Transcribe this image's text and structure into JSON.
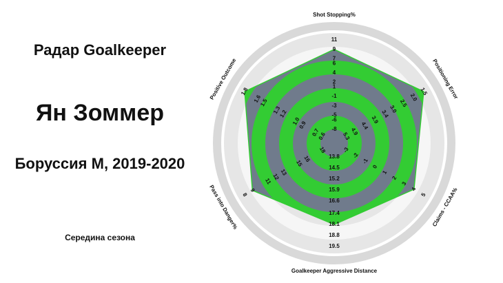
{
  "left_panel": {
    "title": "Радар Goalkeeper",
    "player": "Ян Зоммер",
    "team": "Боруссия М, 2019-2020",
    "period": "Середина сезона"
  },
  "colors": {
    "fill": "#33cc33",
    "ring_dark": "#707b8c",
    "ring_light": "#33cc33",
    "outer_ring": "#d9d9d9"
  },
  "chart_data": {
    "type": "radar",
    "title": "",
    "axes": [
      {
        "label": "Shot Stopping%",
        "ticks": [
          "-8",
          "-6",
          "-5",
          "-3",
          "-1",
          "1",
          "2",
          "4",
          "6",
          "7",
          "9",
          "11"
        ],
        "value": 9,
        "range": [
          -8,
          11
        ]
      },
      {
        "label": "Positioning Error",
        "ticks": [
          "5.3",
          "4.9",
          "4.4",
          "3.9",
          "3.4",
          "3.0",
          "2.5",
          "2.0",
          "1.5"
        ],
        "value": 1.5,
        "range": [
          5.3,
          1.5
        ]
      },
      {
        "label": "Claims - CCAA%",
        "ticks": [
          "-3",
          "-2",
          "-1",
          "0",
          "1",
          "2",
          "3",
          "4",
          "5"
        ],
        "value": 4,
        "range": [
          -3,
          5
        ]
      },
      {
        "label": "Goalkeeper Aggressive Distance",
        "ticks": [
          "13.8",
          "14.5",
          "15.2",
          "15.9",
          "16.6",
          "17.4",
          "18.1",
          "18.8",
          "19.5"
        ],
        "value": 18.1,
        "range": [
          13.8,
          19.5
        ]
      },
      {
        "label": "Pass into Danger%",
        "ticks": [
          "18",
          "16",
          "15",
          "13",
          "12",
          "11",
          "9",
          "8"
        ],
        "value": 9,
        "range": [
          18,
          8
        ]
      },
      {
        "label": "Positive Outcome",
        "ticks": [
          "0.6",
          "0.7",
          "0.9",
          "1.0",
          "1.2",
          "1.3",
          "1.5",
          "1.6",
          "1.8"
        ],
        "value": 1.8,
        "range": [
          0.6,
          1.8
        ]
      }
    ],
    "grid": true,
    "legend": "none"
  }
}
